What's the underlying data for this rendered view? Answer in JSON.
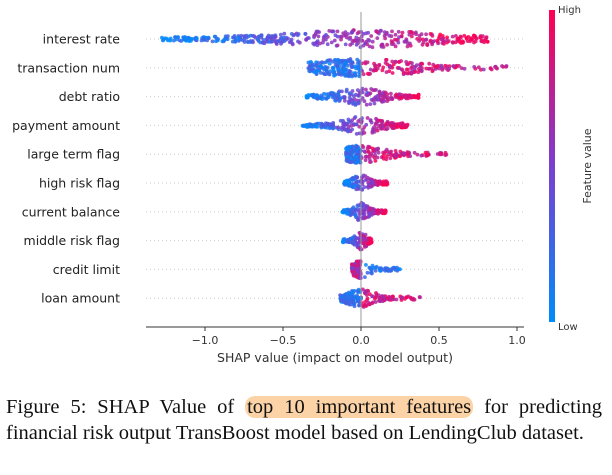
{
  "chart_data": {
    "type": "scatter",
    "subtype": "shap-beeswarm",
    "xlabel": "SHAP value (impact on model output)",
    "xlim": [
      -1.35,
      1.0
    ],
    "xticks": [
      -1.0,
      -0.5,
      0.0,
      0.5,
      1.0
    ],
    "xtick_labels": [
      "−1.0",
      "−0.5",
      "0.0",
      "0.5",
      "1.0"
    ],
    "features": [
      {
        "name": "interest rate",
        "min": -1.28,
        "max": 0.82,
        "spread": 0.53,
        "mode": "diverge"
      },
      {
        "name": "transaction num",
        "min": -0.45,
        "max": 0.95,
        "spread": 0.5,
        "mode": "pos_tail"
      },
      {
        "name": "debt ratio",
        "min": -0.35,
        "max": 0.37,
        "spread": 0.5,
        "mode": "diverge"
      },
      {
        "name": "payment amount",
        "min": -0.38,
        "max": 0.3,
        "spread": 0.45,
        "mode": "diverge"
      },
      {
        "name": "large term flag",
        "min": -0.13,
        "max": 0.58,
        "spread": 0.35,
        "mode": "pos_tail"
      },
      {
        "name": "high risk flag",
        "min": -0.11,
        "max": 0.17,
        "spread": 0.38,
        "mode": "diverge"
      },
      {
        "name": "current balance",
        "min": -0.12,
        "max": 0.16,
        "spread": 0.38,
        "mode": "diverge"
      },
      {
        "name": "middle risk flag",
        "min": -0.12,
        "max": 0.07,
        "spread": 0.38,
        "mode": "diverge"
      },
      {
        "name": "credit limit",
        "min": -0.06,
        "max": 0.25,
        "spread": 0.3,
        "mode": "neg_tail"
      },
      {
        "name": "loan amount",
        "min": -0.18,
        "max": 0.38,
        "spread": 0.32,
        "mode": "pos_tail"
      }
    ],
    "colorbar": {
      "label": "Feature value",
      "high_label": "High",
      "low_label": "Low",
      "low_color": "#008bfb",
      "mid_color": "#7a3fd0",
      "high_color": "#ff0052"
    }
  },
  "caption": {
    "prefix": "Figure 5: SHAP Value of ",
    "highlight": "top 10 important features",
    "suffix": " for predicting financial risk output TransBoost model based on LendingClub dataset."
  }
}
